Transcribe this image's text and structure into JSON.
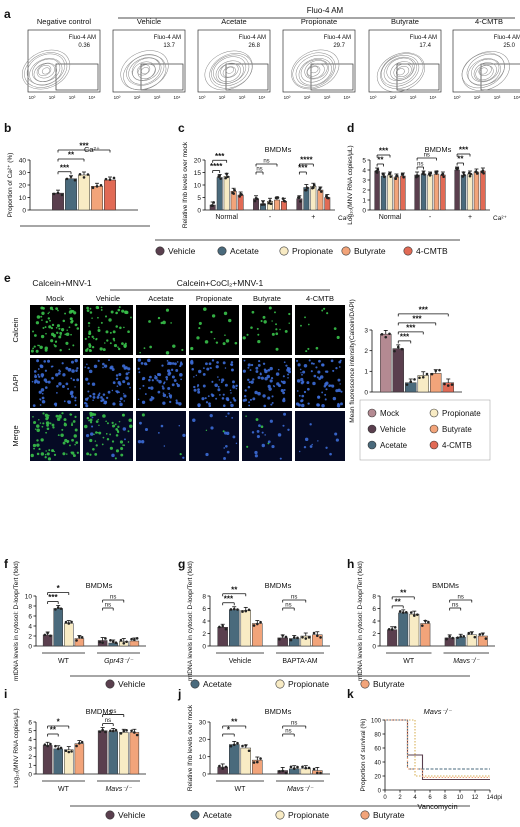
{
  "colors": {
    "vehicle": "#5a3f4e",
    "acetate": "#4a6a7c",
    "propionate": "#f8ebc4",
    "butyrate": "#f2a47a",
    "cmtb": "#e16a55",
    "mock": "#b48a92",
    "micro_green": "#39c14a",
    "micro_blue": "#3c6cd6"
  },
  "panel_letters": [
    "a",
    "b",
    "c",
    "d",
    "e",
    "f",
    "g",
    "h",
    "i",
    "j",
    "k"
  ],
  "legend_full": [
    "Vehicle",
    "Acetate",
    "Propionate",
    "Butyrate",
    "4-CMTB"
  ],
  "legend_short": [
    "Vehicle",
    "Acetate",
    "Propionate",
    "Butyrate"
  ],
  "panel_a": {
    "group_title": "Fluo-4 AM",
    "plots": [
      {
        "title": "Negative control",
        "gate_label": "Fluo-4 AM",
        "gate_value": "0.36"
      },
      {
        "title": "Vehicle",
        "gate_label": "Fluo-4 AM",
        "gate_value": "13.7"
      },
      {
        "title": "Acetate",
        "gate_label": "Fluo-4 AM",
        "gate_value": "26.8"
      },
      {
        "title": "Propionate",
        "gate_label": "Fluo-4 AM",
        "gate_value": "29.7"
      },
      {
        "title": "Butyrate",
        "gate_label": "Fluo-4 AM",
        "gate_value": "17.4"
      },
      {
        "title": "4-CMTB",
        "gate_label": "Fluo-4 AM",
        "gate_value": "25.0"
      }
    ]
  },
  "panel_e": {
    "group_left": "Calcein+MNV-1",
    "group_right": "Calcein+CoCl₂+MNV-1",
    "columns": [
      "Mock",
      "Vehicle",
      "Acetate",
      "Propionate",
      "Butyrate",
      "4-CMTB"
    ],
    "rows": [
      "Calcein",
      "DAPI",
      "Merge"
    ],
    "legend": [
      "Mock",
      "Propionate",
      "Vehicle",
      "Butyrate",
      "Acetate",
      "4-CMTB"
    ]
  },
  "chart_data": [
    {
      "id": "b",
      "type": "bar",
      "title": "Ca²⁺",
      "ylabel": "Proportion of Ca²⁺ (%)",
      "ylim": [
        0,
        40
      ],
      "yticks": [
        "0",
        "10",
        "20",
        "30",
        "40"
      ],
      "categories": [
        "Vehicle",
        "Acetate",
        "Propionate",
        "Butyrate",
        "4-CMTB"
      ],
      "values": [
        13.5,
        25,
        28,
        19,
        24
      ],
      "sig": [
        {
          "a": 0,
          "b": 1,
          "label": "***"
        },
        {
          "a": 0,
          "b": 2,
          "label": "**"
        },
        {
          "a": 0,
          "b": 4,
          "label": "***"
        }
      ]
    },
    {
      "id": "c",
      "type": "bar",
      "title": "BMDMs",
      "ylabel": "Relative Ifnb levels over mock",
      "ylim": [
        0,
        20
      ],
      "yticks": [
        "0",
        "5",
        "10",
        "15",
        "20"
      ],
      "groups": [
        "Normal",
        "-",
        "+"
      ],
      "xaxis_suffix": "Ca²⁺",
      "values": [
        [
          2,
          13,
          13.5,
          7.5,
          6
        ],
        [
          4.5,
          2.5,
          3.5,
          4,
          3.5
        ],
        [
          4.5,
          9,
          9.5,
          8,
          5
        ]
      ],
      "sig": [
        {
          "g": 0,
          "a": 0,
          "b": 1,
          "label": "****"
        },
        {
          "g": 0,
          "a": 0,
          "b": 2,
          "label": "***"
        },
        {
          "g": 1,
          "a": 0,
          "b": 1,
          "label": "ns"
        },
        {
          "g": 1,
          "a": 0,
          "b": 3,
          "label": "ns"
        },
        {
          "g": 2,
          "a": 0,
          "b": 1,
          "label": "***"
        },
        {
          "g": 2,
          "a": 0,
          "b": 2,
          "label": "****"
        }
      ]
    },
    {
      "id": "d",
      "type": "bar",
      "title": "BMDMs",
      "ylabel": "Log₁₀(MNV RNA copies/μL)",
      "ylim": [
        0,
        5
      ],
      "yticks": [
        "0",
        "1",
        "2",
        "3",
        "4",
        "5"
      ],
      "groups": [
        "Normal",
        "-",
        "+"
      ],
      "xaxis_suffix": "Ca²⁺",
      "values": [
        [
          3.9,
          3.4,
          3.5,
          3.3,
          3.4
        ],
        [
          3.5,
          3.6,
          3.5,
          3.6,
          3.5
        ],
        [
          4.0,
          3.5,
          3.6,
          3.8,
          3.9
        ]
      ],
      "sig": [
        {
          "g": 0,
          "a": 0,
          "b": 1,
          "label": "**"
        },
        {
          "g": 0,
          "a": 0,
          "b": 2,
          "label": "***"
        },
        {
          "g": 1,
          "a": 0,
          "b": 1,
          "label": "ns"
        },
        {
          "g": 1,
          "a": 0,
          "b": 3,
          "label": "ns"
        },
        {
          "g": 2,
          "a": 0,
          "b": 1,
          "label": "**"
        },
        {
          "g": 2,
          "a": 0,
          "b": 2,
          "label": "***"
        }
      ]
    },
    {
      "id": "e",
      "type": "bar",
      "ylabel": "Mean fluorescence intensity(Calcein/DAPI)",
      "ylim": [
        0,
        3
      ],
      "yticks": [
        "0",
        "1",
        "2",
        "3"
      ],
      "categories": [
        "Mock",
        "Vehicle",
        "Acetate",
        "Propionate",
        "Butyrate",
        "4-CMTB"
      ],
      "values": [
        2.8,
        2.1,
        0.45,
        0.8,
        0.9,
        0.45
      ],
      "sig": [
        {
          "a": 1,
          "b": 2,
          "label": "***"
        },
        {
          "a": 1,
          "b": 3,
          "label": "***"
        },
        {
          "a": 1,
          "b": 4,
          "label": "***"
        },
        {
          "a": 1,
          "b": 5,
          "label": "***"
        }
      ]
    },
    {
      "id": "f",
      "type": "bar",
      "title": "BMDMs",
      "ylabel": "mtDNA levels in cytosol: D-loop/Tert (fold)",
      "ylim": [
        0,
        10
      ],
      "yticks": [
        "0",
        "2",
        "4",
        "6",
        "8",
        "10"
      ],
      "groups": [
        "WT",
        "Gpr43⁻/⁻"
      ],
      "values": [
        [
          2.2,
          7.5,
          4.5,
          1.5
        ],
        [
          1.1,
          0.6,
          0.9,
          1.0
        ]
      ],
      "sig": [
        {
          "g": 0,
          "a": 0,
          "b": 1,
          "label": "***"
        },
        {
          "g": 0,
          "a": 0,
          "b": 2,
          "label": "*"
        },
        {
          "g": 1,
          "a": 0,
          "b": 1,
          "label": "ns"
        },
        {
          "g": 1,
          "a": 0,
          "b": 2,
          "label": "ns"
        }
      ]
    },
    {
      "id": "g",
      "type": "bar",
      "title": "BMDMs",
      "ylabel": "mtDNA levels in cytosol: D-loop/Tert (fold)",
      "ylim": [
        0,
        8
      ],
      "yticks": [
        "0",
        "2",
        "4",
        "6",
        "8"
      ],
      "groups": [
        "Vehicle",
        "BAPTA-AM"
      ],
      "values": [
        [
          3.0,
          5.8,
          5.7,
          3.6
        ],
        [
          1.3,
          1.2,
          1.6,
          1.8
        ]
      ],
      "sig": [
        {
          "g": 0,
          "a": 0,
          "b": 1,
          "label": "***"
        },
        {
          "g": 0,
          "a": 0,
          "b": 2,
          "label": "**"
        },
        {
          "g": 1,
          "a": 0,
          "b": 1,
          "label": "ns"
        },
        {
          "g": 1,
          "a": 0,
          "b": 2,
          "label": "ns"
        }
      ]
    },
    {
      "id": "h",
      "type": "bar",
      "title": "BMDMs",
      "ylabel": "mtDNA levels in cytosol: D-loop/Tert (fold)",
      "ylim": [
        0,
        8
      ],
      "yticks": [
        "0",
        "2",
        "4",
        "6",
        "8"
      ],
      "groups": [
        "WT",
        "Mavs⁻/⁻"
      ],
      "values": [
        [
          2.6,
          5.3,
          5.1,
          3.6
        ],
        [
          1.3,
          1.4,
          1.8,
          1.6
        ]
      ],
      "sig": [
        {
          "g": 0,
          "a": 0,
          "b": 1,
          "label": "**"
        },
        {
          "g": 0,
          "a": 0,
          "b": 2,
          "label": "**"
        },
        {
          "g": 1,
          "a": 0,
          "b": 1,
          "label": "ns"
        },
        {
          "g": 1,
          "a": 0,
          "b": 2,
          "label": "ns"
        }
      ]
    },
    {
      "id": "i",
      "type": "bar",
      "title": "BMDMs",
      "ylabel": "Log₁₀(MNV RNA copies/μL)",
      "ylim": [
        0,
        6
      ],
      "yticks": [
        "0",
        "1",
        "2",
        "3",
        "4",
        "5",
        "6"
      ],
      "groups": [
        "WT",
        "Mavs⁻/⁻"
      ],
      "values": [
        [
          3.3,
          2.9,
          2.8,
          3.5
        ],
        [
          5.0,
          4.9,
          4.8,
          4.8
        ]
      ],
      "sig": [
        {
          "g": 0,
          "a": 0,
          "b": 1,
          "label": "**"
        },
        {
          "g": 0,
          "a": 0,
          "b": 2,
          "label": "*"
        },
        {
          "g": 1,
          "a": 0,
          "b": 1,
          "label": "ns"
        },
        {
          "g": 1,
          "a": 0,
          "b": 2,
          "label": "ns"
        }
      ]
    },
    {
      "id": "j",
      "type": "bar",
      "title": "BMDMs",
      "ylabel": "Relative Ifnb levels over mock",
      "ylim": [
        0,
        30
      ],
      "yticks": [
        "0",
        "10",
        "20",
        "30"
      ],
      "groups": [
        "WT",
        "Mavs⁻/⁻"
      ],
      "values": [
        [
          4,
          17,
          15,
          8
        ],
        [
          2,
          3,
          3,
          2
        ]
      ],
      "sig": [
        {
          "g": 0,
          "a": 0,
          "b": 1,
          "label": "*"
        },
        {
          "g": 0,
          "a": 0,
          "b": 2,
          "label": "**"
        },
        {
          "g": 1,
          "a": 0,
          "b": 1,
          "label": "ns"
        },
        {
          "g": 1,
          "a": 0,
          "b": 2,
          "label": "ns"
        }
      ]
    },
    {
      "id": "k",
      "type": "line",
      "title": "Mavs⁻/⁻",
      "ylabel": "Proportion of survival (%)",
      "xlabel": "Vancomycin",
      "xunit": "dpi",
      "ylim": [
        0,
        100
      ],
      "xlim": [
        0,
        14
      ],
      "yticks": [
        "0",
        "20",
        "40",
        "60",
        "80",
        "100"
      ],
      "xticks": [
        "0",
        "2",
        "4",
        "6",
        "8",
        "10",
        "12",
        "14"
      ],
      "series": [
        {
          "points": [
            [
              0,
              100
            ],
            [
              3,
              100
            ],
            [
              3,
              50
            ],
            [
              5,
              50
            ],
            [
              5,
              15
            ],
            [
              14,
              15
            ]
          ]
        },
        {
          "points": [
            [
              0,
              100
            ],
            [
              3,
              100
            ],
            [
              3,
              30
            ],
            [
              14,
              30
            ]
          ]
        },
        {
          "points": [
            [
              0,
              100
            ],
            [
              4,
              100
            ],
            [
              4,
              20
            ],
            [
              14,
              20
            ]
          ]
        },
        {
          "points": [
            [
              0,
              100
            ],
            [
              3,
              100
            ],
            [
              3,
              30
            ],
            [
              5,
              30
            ],
            [
              5,
              18
            ],
            [
              14,
              18
            ]
          ]
        }
      ]
    }
  ]
}
